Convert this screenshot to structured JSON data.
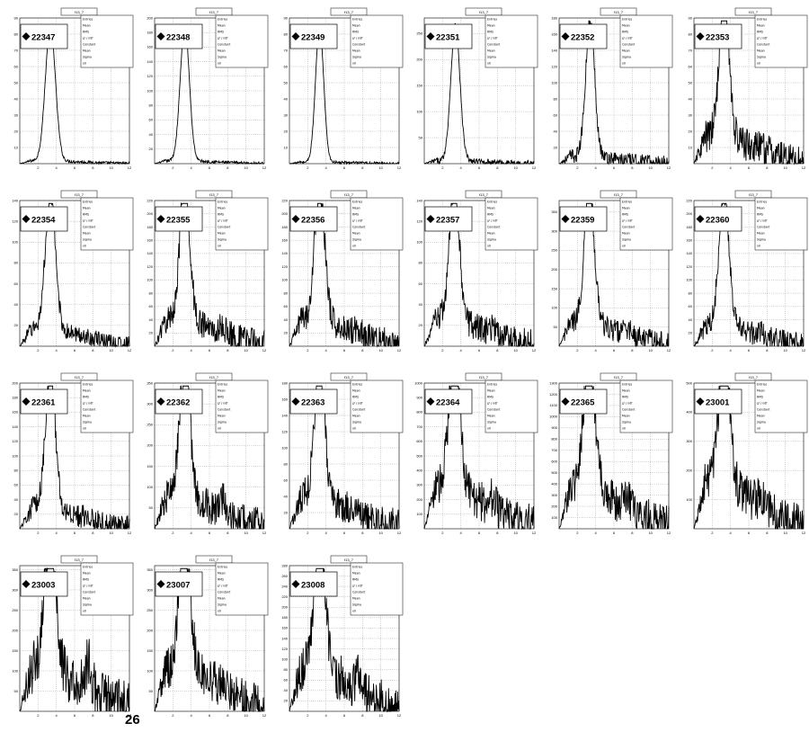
{
  "stray_text": "26",
  "chart_data": {
    "type": "line",
    "histogram_name": "f13_7",
    "xlim": [
      0,
      12
    ],
    "x_ticks": [
      2,
      4,
      6,
      8,
      10,
      12
    ],
    "grid": true,
    "legend_position": "top-left",
    "stats_labels": [
      "Entries",
      "Mean",
      "RMS",
      "χ² / ndf",
      "Constant",
      "Mean",
      "Sigma",
      "x0"
    ],
    "panels": [
      {
        "run": "22347",
        "peak_x": 3.35,
        "sigma": 0.55,
        "background": 0.02,
        "noise": 0.01,
        "secondary": 0,
        "y_max": 90,
        "y_ticks": [
          10,
          20,
          30,
          40,
          50,
          60,
          70,
          80,
          90
        ]
      },
      {
        "run": "22348",
        "peak_x": 3.3,
        "sigma": 0.5,
        "background": 0.02,
        "noise": 0.01,
        "secondary": 0,
        "y_max": 200,
        "y_ticks": [
          20,
          40,
          60,
          80,
          100,
          120,
          140,
          160,
          180,
          200
        ]
      },
      {
        "run": "22349",
        "peak_x": 3.3,
        "sigma": 0.45,
        "background": 0.01,
        "noise": 0.01,
        "secondary": 0,
        "y_max": 90,
        "y_ticks": [
          10,
          20,
          30,
          40,
          50,
          60,
          70,
          80,
          90
        ]
      },
      {
        "run": "22351",
        "peak_x": 3.4,
        "sigma": 0.5,
        "background": 0.02,
        "noise": 0.02,
        "secondary": 0,
        "y_max": 280,
        "y_ticks": [
          50,
          100,
          150,
          200,
          250
        ]
      },
      {
        "run": "22352",
        "peak_x": 3.4,
        "sigma": 0.5,
        "background": 0.05,
        "noise": 0.05,
        "secondary": 0,
        "y_max": 180,
        "y_ticks": [
          20,
          40,
          60,
          80,
          100,
          120,
          140,
          160,
          180
        ]
      },
      {
        "run": "22353",
        "peak_x": 3.3,
        "sigma": 0.55,
        "background": 0.18,
        "noise": 0.12,
        "secondary": 0.05,
        "y_max": 90,
        "y_ticks": [
          10,
          20,
          30,
          40,
          50,
          60,
          70,
          80,
          90
        ]
      },
      {
        "run": "22354",
        "peak_x": 3.35,
        "sigma": 0.55,
        "background": 0.12,
        "noise": 0.06,
        "secondary": 0.03,
        "y_max": 140,
        "y_ticks": [
          20,
          40,
          60,
          80,
          100,
          120,
          140
        ]
      },
      {
        "run": "22355",
        "peak_x": 3.3,
        "sigma": 0.55,
        "background": 0.18,
        "noise": 0.1,
        "secondary": 0.12,
        "y_max": 220,
        "y_ticks": [
          20,
          40,
          60,
          80,
          100,
          120,
          140,
          160,
          180,
          200,
          220
        ]
      },
      {
        "run": "22356",
        "peak_x": 3.3,
        "sigma": 0.55,
        "background": 0.18,
        "noise": 0.1,
        "secondary": 0.12,
        "y_max": 220,
        "y_ticks": [
          20,
          40,
          60,
          80,
          100,
          120,
          140,
          160,
          180,
          200,
          220
        ]
      },
      {
        "run": "22357",
        "peak_x": 3.3,
        "sigma": 0.55,
        "background": 0.18,
        "noise": 0.1,
        "secondary": 0.12,
        "y_max": 140,
        "y_ticks": [
          20,
          40,
          60,
          80,
          100,
          120,
          140
        ]
      },
      {
        "run": "22359",
        "peak_x": 3.3,
        "sigma": 0.55,
        "background": 0.16,
        "noise": 0.08,
        "secondary": 0.12,
        "y_max": 380,
        "y_ticks": [
          50,
          100,
          150,
          200,
          250,
          300,
          350
        ]
      },
      {
        "run": "22360",
        "peak_x": 3.3,
        "sigma": 0.55,
        "background": 0.14,
        "noise": 0.08,
        "secondary": 0.08,
        "y_max": 220,
        "y_ticks": [
          20,
          40,
          60,
          80,
          100,
          120,
          140,
          160,
          180,
          200,
          220
        ]
      },
      {
        "run": "22361",
        "peak_x": 3.35,
        "sigma": 0.55,
        "background": 0.14,
        "noise": 0.08,
        "secondary": 0.1,
        "y_max": 200,
        "y_ticks": [
          20,
          40,
          60,
          80,
          100,
          120,
          140,
          160,
          180,
          200
        ]
      },
      {
        "run": "22362",
        "peak_x": 3.3,
        "sigma": 0.55,
        "background": 0.22,
        "noise": 0.12,
        "secondary": 0.3,
        "y_max": 350,
        "y_ticks": [
          50,
          100,
          150,
          200,
          250,
          300,
          350
        ]
      },
      {
        "run": "22363",
        "peak_x": 3.3,
        "sigma": 0.55,
        "background": 0.22,
        "noise": 0.12,
        "secondary": 0.15,
        "y_max": 180,
        "y_ticks": [
          20,
          40,
          60,
          80,
          100,
          120,
          140,
          160,
          180
        ]
      },
      {
        "run": "22364",
        "peak_x": 3.3,
        "sigma": 0.6,
        "background": 0.28,
        "noise": 0.14,
        "secondary": 0.2,
        "y_max": 1000,
        "y_ticks": [
          100,
          200,
          300,
          400,
          500,
          600,
          700,
          800,
          900,
          1000
        ]
      },
      {
        "run": "22365",
        "peak_x": 3.3,
        "sigma": 0.6,
        "background": 0.28,
        "noise": 0.14,
        "secondary": 0.22,
        "y_max": 1300,
        "y_ticks": [
          100,
          200,
          300,
          400,
          500,
          600,
          700,
          800,
          900,
          1000,
          1100,
          1200,
          1300
        ]
      },
      {
        "run": "23001",
        "peak_x": 3.3,
        "sigma": 0.6,
        "background": 0.3,
        "noise": 0.15,
        "secondary": 0.25,
        "y_max": 500,
        "y_ticks": [
          100,
          200,
          300,
          400,
          500
        ]
      },
      {
        "run": "23003",
        "peak_x": 3.3,
        "sigma": 0.6,
        "background": 0.3,
        "noise": 0.18,
        "secondary": 0.55,
        "y_max": 360,
        "y_ticks": [
          50,
          100,
          150,
          200,
          250,
          300,
          350
        ]
      },
      {
        "run": "23007",
        "peak_x": 3.3,
        "sigma": 0.6,
        "background": 0.3,
        "noise": 0.16,
        "secondary": 0.3,
        "y_max": 360,
        "y_ticks": [
          50,
          100,
          150,
          200,
          250,
          300,
          350
        ]
      },
      {
        "run": "23008",
        "peak_x": 3.3,
        "sigma": 0.6,
        "background": 0.3,
        "noise": 0.16,
        "secondary": 0.25,
        "y_max": 280,
        "y_ticks": [
          20,
          40,
          60,
          80,
          100,
          120,
          140,
          160,
          180,
          200,
          220,
          240,
          260,
          280
        ]
      }
    ]
  }
}
